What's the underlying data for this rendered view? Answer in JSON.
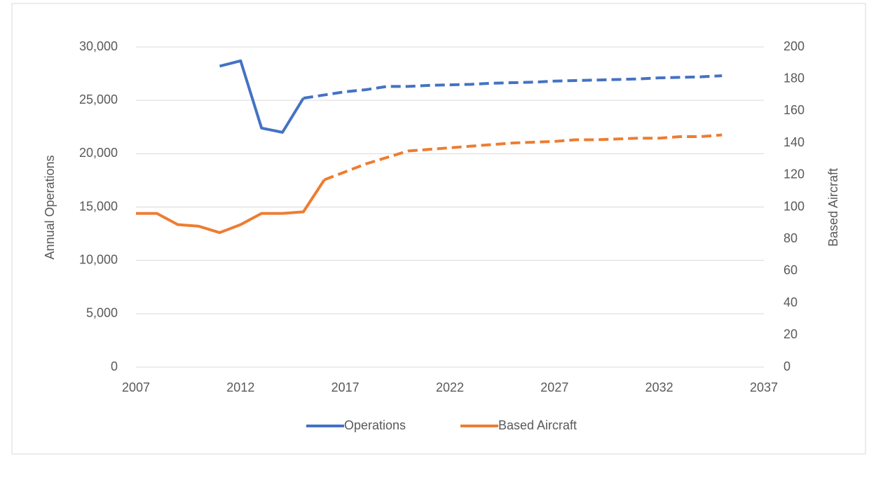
{
  "chart_data": {
    "type": "line",
    "y_label": "Annual Operations",
    "y2_label": "Based Aircraft",
    "x": [
      2007,
      2008,
      2009,
      2010,
      2011,
      2012,
      2013,
      2014,
      2015,
      2016,
      2017,
      2018,
      2019,
      2020,
      2021,
      2022,
      2023,
      2024,
      2025,
      2026,
      2027,
      2028,
      2029,
      2030,
      2031,
      2032,
      2033,
      2034,
      2035
    ],
    "series": [
      {
        "name": "Operations",
        "color": "#4472c4",
        "axis": "y",
        "dash_from": 2015,
        "values": [
          null,
          null,
          null,
          null,
          28200,
          28700,
          22400,
          22000,
          25200,
          25500,
          25800,
          26000,
          26300,
          26300,
          26400,
          26450,
          26500,
          26600,
          26650,
          26700,
          26800,
          26850,
          26900,
          26950,
          27000,
          27100,
          27150,
          27200,
          27300
        ]
      },
      {
        "name": "Based Aircraft",
        "color": "#ed7d31",
        "axis": "y2",
        "dash_from": 2016,
        "values": [
          96,
          96,
          89,
          88,
          84,
          89,
          96,
          96,
          97,
          117,
          122,
          127,
          131,
          135,
          136,
          137,
          138,
          139,
          140,
          140.5,
          141,
          142,
          142,
          142.5,
          143,
          143,
          144,
          144,
          145
        ]
      }
    ],
    "xlim": [
      2007,
      2037
    ],
    "xticks": [
      2007,
      2012,
      2017,
      2022,
      2027,
      2032,
      2037
    ],
    "ylim": [
      0,
      30000
    ],
    "yticks": [
      0,
      {
        "value": 5000,
        "label": "5,000"
      },
      {
        "value": 10000,
        "label": "10,000"
      },
      {
        "value": 15000,
        "label": "15,000"
      },
      {
        "value": 20000,
        "label": "20,000"
      },
      {
        "value": 25000,
        "label": "25,000"
      },
      {
        "value": 30000,
        "label": "30,000"
      }
    ],
    "y2lim": [
      0,
      200
    ],
    "y2ticks": [
      0,
      20,
      40,
      60,
      80,
      100,
      120,
      140,
      160,
      180,
      200
    ],
    "grid": true,
    "legend": "bottom"
  }
}
